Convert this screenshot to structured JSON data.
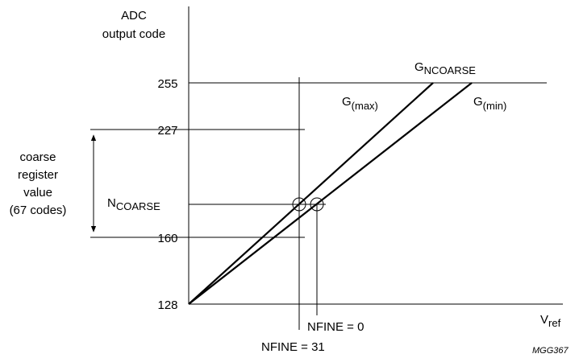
{
  "y_axis_title": [
    "ADC",
    "output code"
  ],
  "x_axis_title": {
    "main": "V",
    "sub": "ref"
  },
  "y_ticks": [
    "255",
    "227",
    "160",
    "128"
  ],
  "n_coarse_label": {
    "main": "N",
    "sub": "COARSE"
  },
  "curves": {
    "g_ncoarse": {
      "main": "G",
      "sub": "NCOARSE"
    },
    "g_max": {
      "main": "G",
      "sub": "(max)"
    },
    "g_min": {
      "main": "G",
      "sub": "(min)"
    }
  },
  "fine_labels": {
    "nfine_0": "NFINE = 0",
    "nfine_31": "NFINE = 31"
  },
  "coarse_register": [
    "coarse",
    "register",
    "value",
    "(67 codes)"
  ],
  "figure_code": "MGG367"
}
